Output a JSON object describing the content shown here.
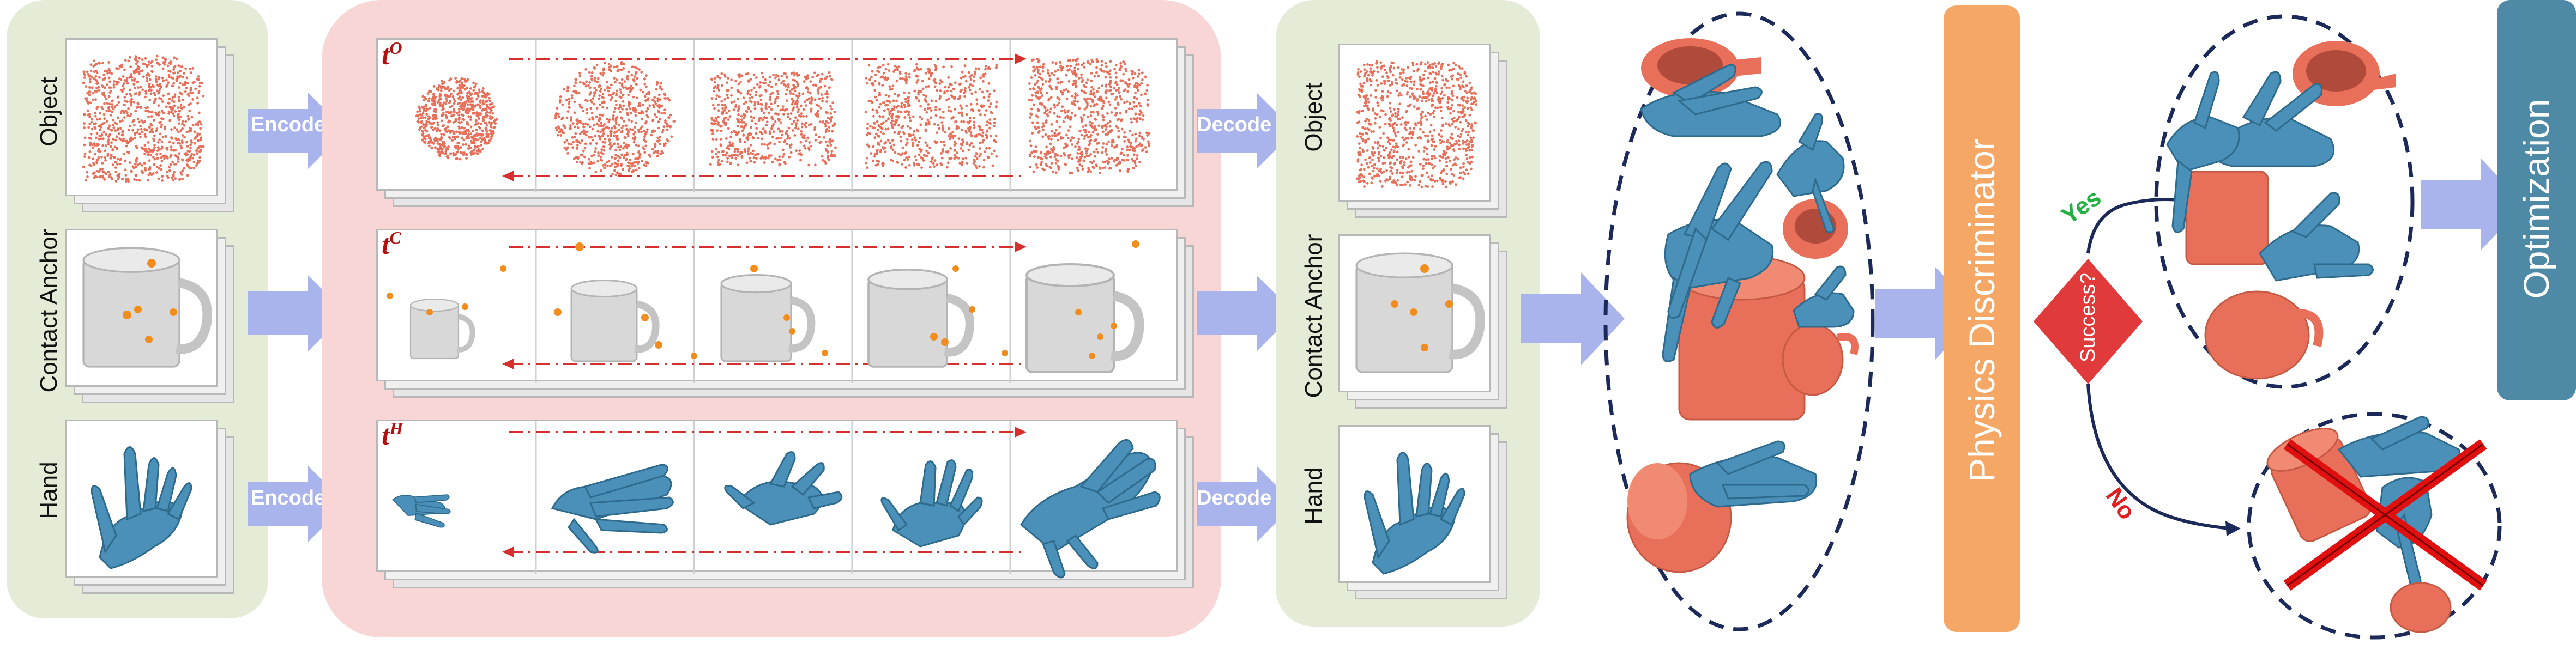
{
  "rows": {
    "object": "Object",
    "contact_anchor": "Contact Anchor",
    "hand": "Hand"
  },
  "buttons": {
    "encode": "Encode",
    "decode": "Decode"
  },
  "timestep_labels": {
    "object": {
      "base": "t",
      "sup": "O"
    },
    "contact": {
      "base": "t",
      "sup": "C"
    },
    "hand": {
      "base": "t",
      "sup": "H"
    }
  },
  "physics_discriminator": "Physics Discriminator",
  "decision": {
    "question": "Success?",
    "yes": "Yes",
    "no": "No"
  },
  "optimization": "Optimization",
  "colors": {
    "green_panel": "#e4ebd6",
    "red_panel": "#f8d6d6",
    "arrow_blue": "#aab4ec",
    "object_orange": "#e8705a",
    "hand_blue": "#4a90b8",
    "anchor_dot": "#f28c1c",
    "physics_box": "#f5a865",
    "optimization_box": "#4e8aa6",
    "decision_red": "#e03a3a",
    "dashed_red": "#d43030",
    "yes_green": "#22b040",
    "no_red": "#e02020",
    "ellipse_navy": "#1c2a5a"
  }
}
